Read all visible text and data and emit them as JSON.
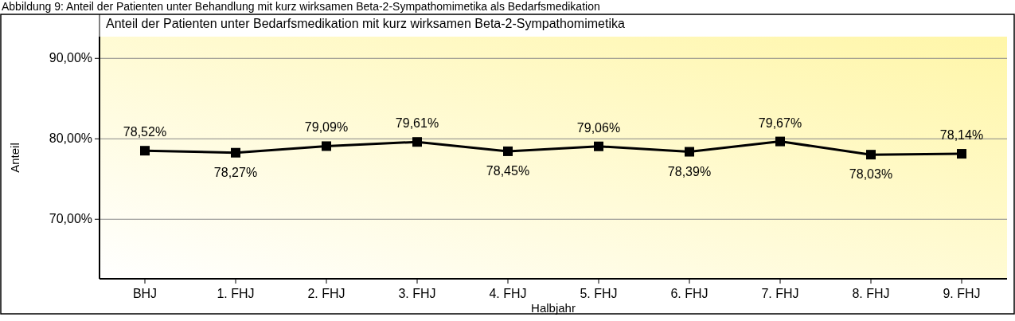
{
  "chart_data": {
    "type": "line",
    "title": "Anteil der Patienten unter Bedarfsmedikation mit kurz wirksamen Beta-2-Sympathomimetika",
    "annotations": [
      "Abbildung 9: Anteil der Patienten unter Behandlung mit kurz wirksamen Beta-2-Sympathomimetika als Bedarfsmedikation"
    ],
    "xlabel": "Halbjahr",
    "ylabel": "Anteil",
    "categories": [
      "BHJ",
      "1. FHJ",
      "2. FHJ",
      "3. FHJ",
      "4. FHJ",
      "5. FHJ",
      "6. FHJ",
      "7. FHJ",
      "8. FHJ",
      "9. FHJ"
    ],
    "series": [
      {
        "color": "#000000",
        "values": [
          78.52,
          78.27,
          79.09,
          79.61,
          78.45,
          79.06,
          78.39,
          79.67,
          78.03,
          78.14
        ],
        "value_labels": [
          "78,52%",
          "78,27%",
          "79,09%",
          "79,61%",
          "78,45%",
          "79,06%",
          "78,39%",
          "79,67%",
          "78,03%",
          "78,14%"
        ]
      }
    ],
    "ylim": [
      62.6,
      92.7
    ],
    "yticks": [
      {
        "value": 70,
        "label": "70,00%"
      },
      {
        "value": 80,
        "label": "80,00%"
      },
      {
        "value": 90,
        "label": "90,00%"
      }
    ],
    "grid": "y",
    "marker": "square",
    "line_style": "solid"
  }
}
